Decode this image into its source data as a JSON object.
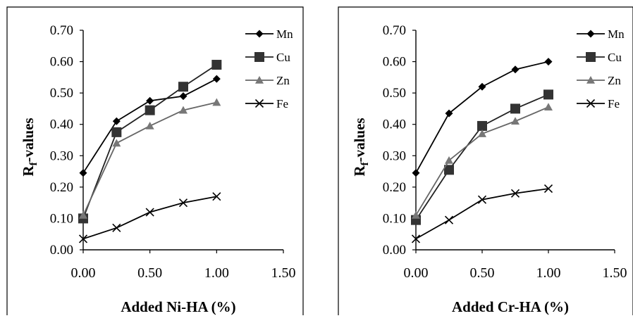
{
  "chart_data": [
    {
      "type": "line",
      "title": "",
      "xlabel": "Added Ni-HA (%)",
      "ylabel": {
        "main": "R",
        "sub": "f",
        "rest": "-values"
      },
      "xlim": [
        0,
        1.5
      ],
      "ylim": [
        0,
        0.7
      ],
      "xticks": [
        "0.00",
        "0.50",
        "1.00",
        "1.50"
      ],
      "yticks": [
        "0.00",
        "0.10",
        "0.20",
        "0.30",
        "0.40",
        "0.50",
        "0.60",
        "0.70"
      ],
      "x": [
        0,
        0.25,
        0.5,
        0.75,
        1.0
      ],
      "legend_position": "top-right",
      "series": [
        {
          "name": "Mn",
          "marker": "diamond",
          "values": [
            0.245,
            0.41,
            0.475,
            0.49,
            0.545
          ]
        },
        {
          "name": "Cu",
          "marker": "square",
          "values": [
            0.1,
            0.375,
            0.445,
            0.52,
            0.59
          ]
        },
        {
          "name": "Zn",
          "marker": "triangle",
          "values": [
            0.11,
            0.34,
            0.395,
            0.445,
            0.47
          ]
        },
        {
          "name": "Fe",
          "marker": "x",
          "values": [
            0.035,
            0.07,
            0.12,
            0.15,
            0.17
          ]
        }
      ]
    },
    {
      "type": "line",
      "title": "",
      "xlabel": "Added Cr-HA (%)",
      "ylabel": {
        "main": "R",
        "sub": "f",
        "rest": "-values"
      },
      "xlim": [
        0,
        1.5
      ],
      "ylim": [
        0,
        0.7
      ],
      "xticks": [
        "0.00",
        "0.50",
        "1.00",
        "1.50"
      ],
      "yticks": [
        "0.00",
        "0.10",
        "0.20",
        "0.30",
        "0.40",
        "0.50",
        "0.60",
        "0.70"
      ],
      "x": [
        0,
        0.25,
        0.5,
        0.75,
        1.0
      ],
      "legend_position": "top-right",
      "series": [
        {
          "name": "Mn",
          "marker": "diamond",
          "values": [
            0.245,
            0.435,
            0.52,
            0.575,
            0.6
          ]
        },
        {
          "name": "Cu",
          "marker": "square",
          "values": [
            0.095,
            0.255,
            0.395,
            0.45,
            0.495
          ]
        },
        {
          "name": "Zn",
          "marker": "triangle",
          "values": [
            0.11,
            0.285,
            0.37,
            0.41,
            0.455
          ]
        },
        {
          "name": "Fe",
          "marker": "x",
          "values": [
            0.035,
            0.095,
            0.16,
            0.18,
            0.195
          ]
        }
      ]
    }
  ]
}
